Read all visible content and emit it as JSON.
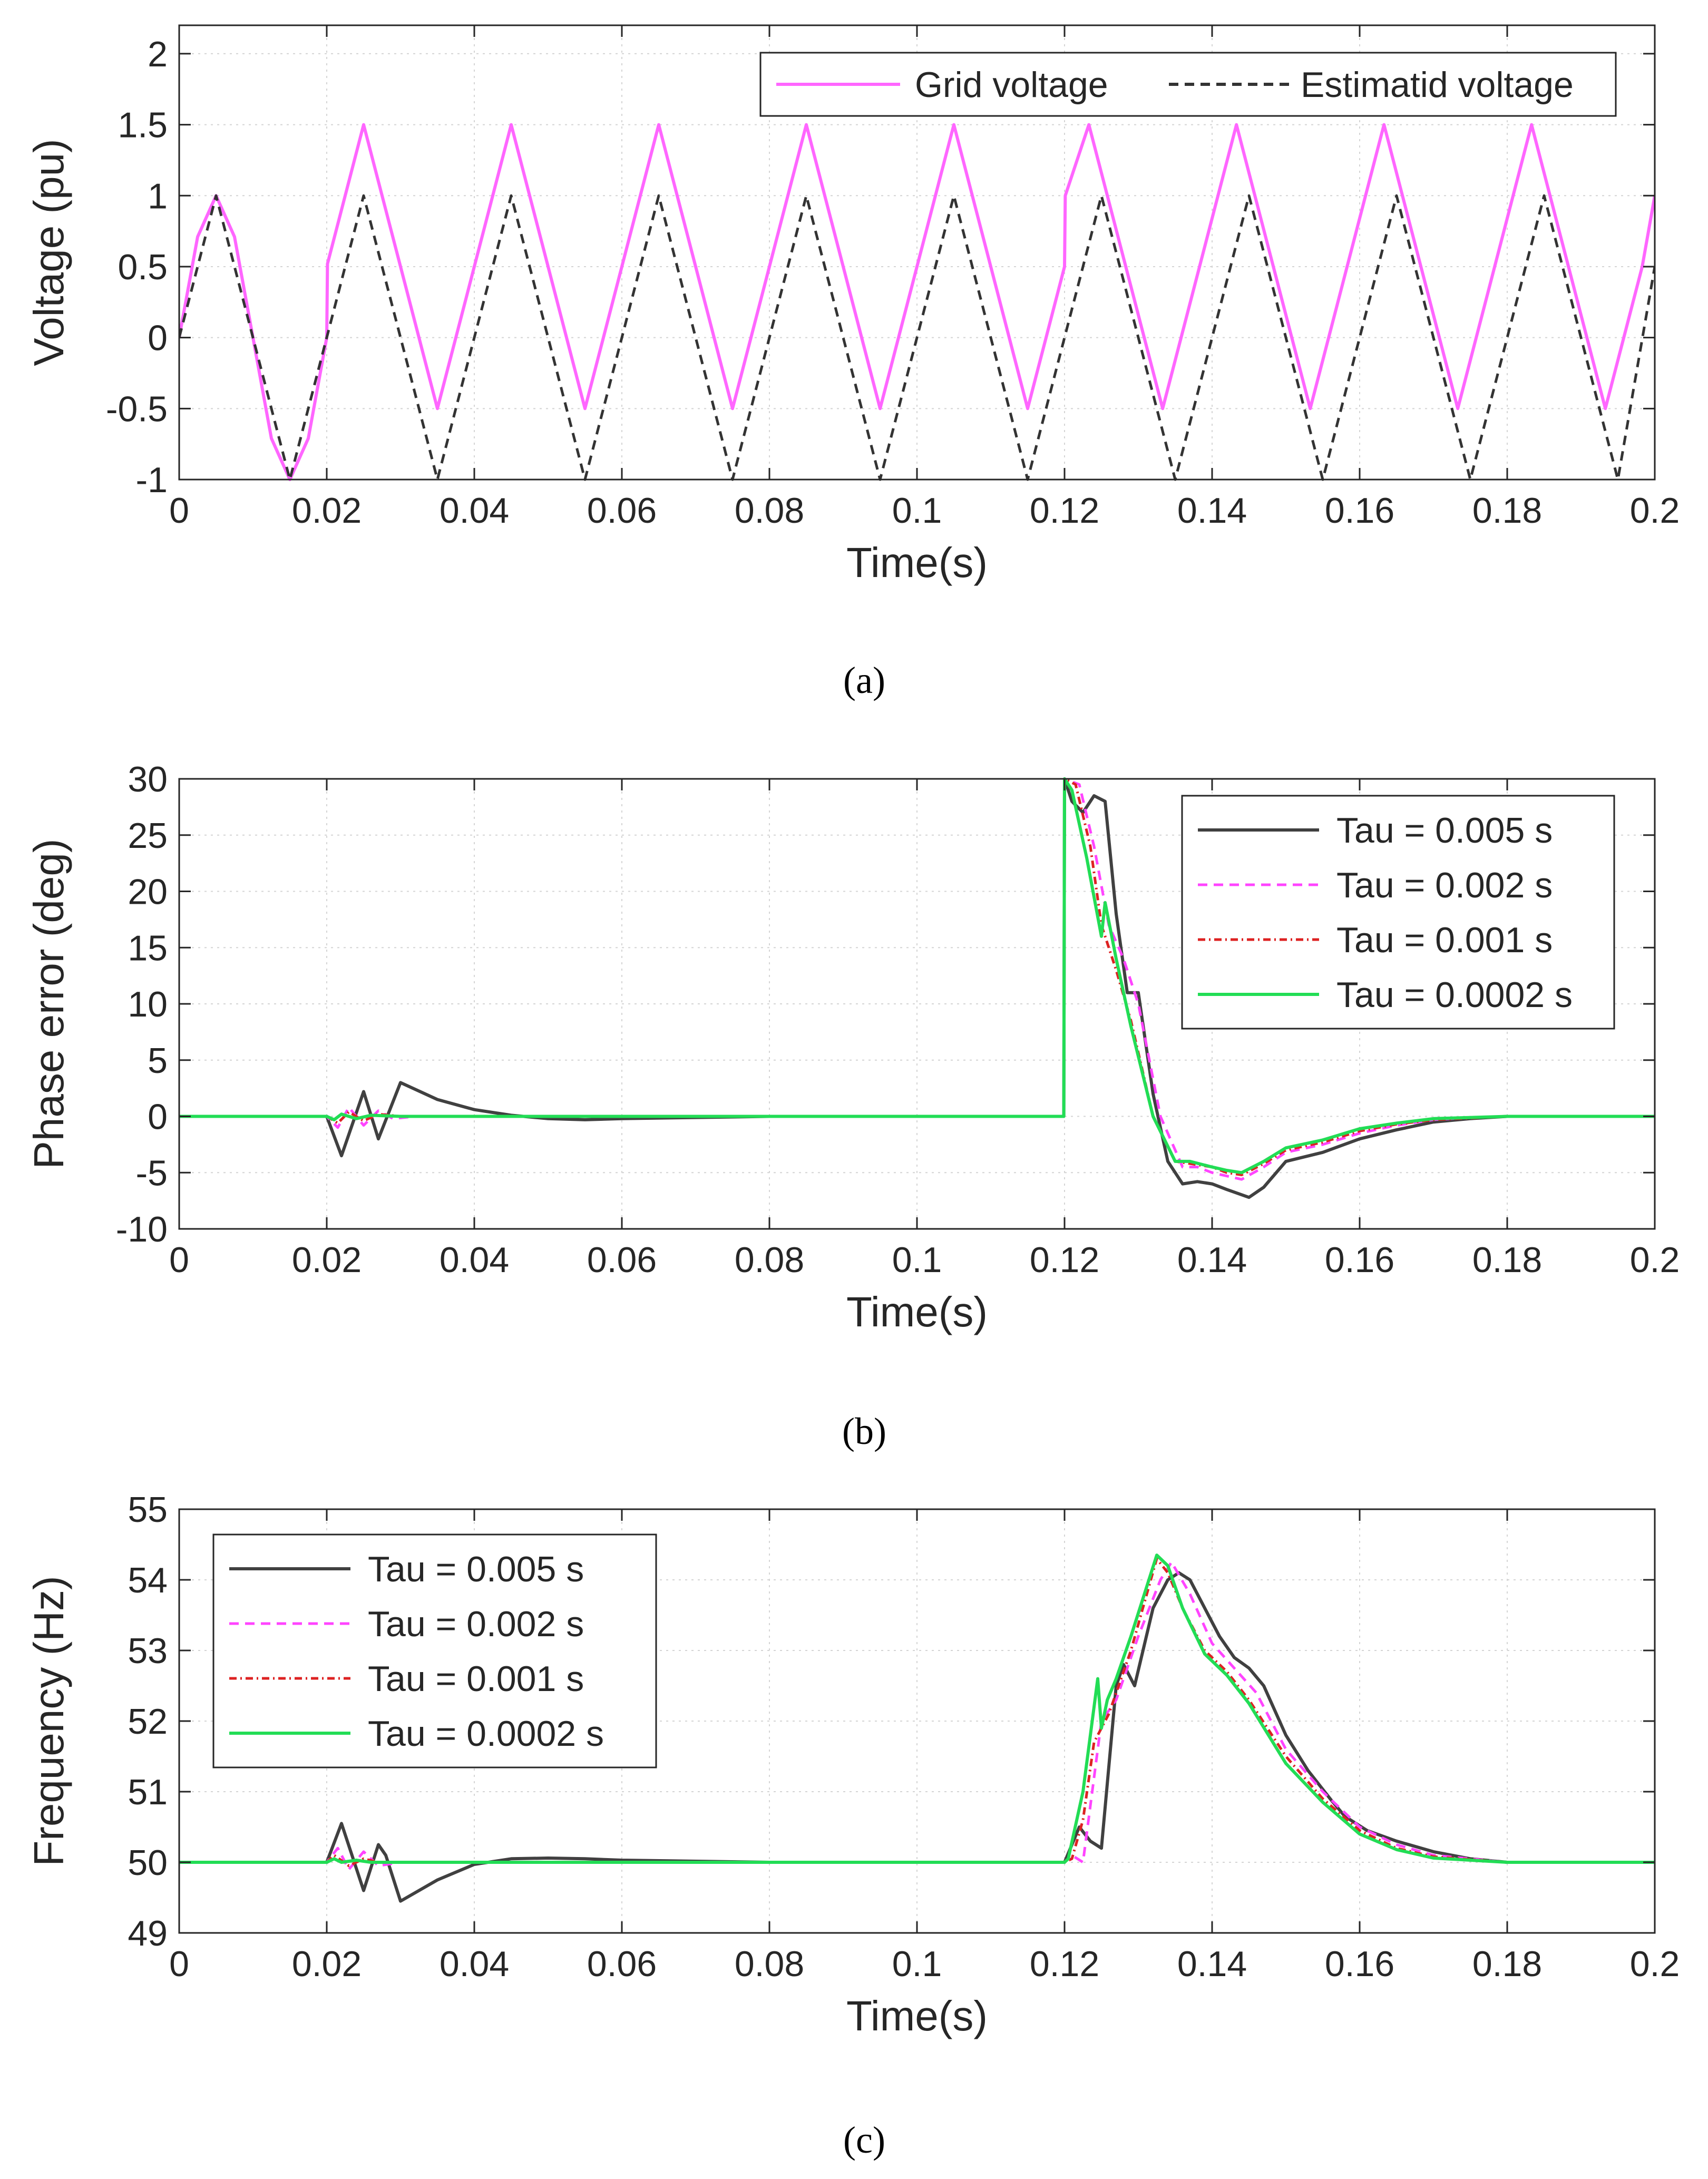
{
  "figure": {
    "panel_labels": [
      "(a)",
      "(b)",
      "(c)"
    ]
  },
  "chart_data": [
    {
      "id": "a",
      "type": "line",
      "title": "",
      "xlabel": "Time(s)",
      "ylabel": "Voltage (pu)",
      "xlim": [
        0,
        0.2
      ],
      "ylim": [
        -1,
        2.2
      ],
      "xticks": [
        0,
        0.02,
        0.04,
        0.06,
        0.08,
        0.1,
        0.12,
        0.14,
        0.16,
        0.18,
        0.2
      ],
      "xtick_labels": [
        "0",
        "0.02",
        "0.04",
        "0.06",
        "0.08",
        "0.1",
        "0.12",
        "0.14",
        "0.16",
        "0.18",
        "0.2"
      ],
      "yticks": [
        -1,
        -0.5,
        0,
        0.5,
        1,
        1.5,
        2
      ],
      "ytick_labels": [
        "-1",
        "-0.5",
        "0",
        "0.5",
        "1",
        "1.5",
        "2"
      ],
      "grid": true,
      "legend": {
        "placement": "top-right",
        "orientation": "horizontal"
      },
      "series": [
        {
          "name": "Grid voltage",
          "color": "#ff66ff",
          "dash": "solid",
          "description": "Sine at 50 Hz, amplitude 1; from t=0.02 s offset by +0.5 pu (swing -0.5 to 1.5); phase jump of 30 deg at t=0.12 s",
          "x": [
            0,
            0.0025,
            0.005,
            0.0075,
            0.01,
            0.0125,
            0.015,
            0.0175,
            0.02,
            0.0201,
            0.025,
            0.03,
            0.035,
            0.04,
            0.045,
            0.05,
            0.055,
            0.06,
            0.065,
            0.07,
            0.075,
            0.08,
            0.085,
            0.09,
            0.095,
            0.1,
            0.105,
            0.11,
            0.115,
            0.12,
            0.1201,
            0.1233,
            0.1283,
            0.1333,
            0.1383,
            0.1433,
            0.1483,
            0.1533,
            0.1583,
            0.1633,
            0.1683,
            0.1733,
            0.1783,
            0.1833,
            0.1883,
            0.1933,
            0.1983,
            0.2
          ],
          "values": [
            0,
            0.71,
            1,
            0.71,
            0,
            -0.71,
            -1,
            -0.71,
            0,
            0.52,
            1.5,
            0.5,
            -0.5,
            0.5,
            1.5,
            0.5,
            -0.5,
            0.5,
            1.5,
            0.5,
            -0.5,
            0.5,
            1.5,
            0.5,
            -0.5,
            0.5,
            1.5,
            0.5,
            -0.5,
            0.5,
            1.0,
            1.5,
            0.5,
            -0.5,
            0.5,
            1.5,
            0.5,
            -0.5,
            0.5,
            1.5,
            0.5,
            -0.5,
            0.5,
            1.5,
            0.5,
            -0.5,
            0.5,
            1.0
          ]
        },
        {
          "name": "Estimatid voltage",
          "color": "#333333",
          "dash": "dashed",
          "description": "Unit-amplitude sine at 50 Hz (swing -1 to 1)",
          "x": [
            0,
            0.005,
            0.01,
            0.015,
            0.02,
            0.025,
            0.03,
            0.035,
            0.04,
            0.045,
            0.05,
            0.055,
            0.06,
            0.065,
            0.07,
            0.075,
            0.08,
            0.085,
            0.09,
            0.095,
            0.1,
            0.105,
            0.11,
            0.115,
            0.12,
            0.125,
            0.13,
            0.135,
            0.14,
            0.145,
            0.15,
            0.155,
            0.16,
            0.165,
            0.17,
            0.175,
            0.18,
            0.185,
            0.19,
            0.195,
            0.2
          ],
          "values": [
            0,
            1,
            0,
            -1,
            0,
            1,
            0,
            -1,
            0,
            1,
            0,
            -1,
            0,
            1,
            0,
            -1,
            0,
            1,
            0,
            -1,
            0,
            1,
            0,
            -1,
            0,
            1,
            0,
            -1,
            0,
            1,
            0,
            -1,
            0,
            1,
            0,
            -1,
            0,
            1,
            0,
            -1,
            0.5
          ]
        }
      ]
    },
    {
      "id": "b",
      "type": "line",
      "title": "",
      "xlabel": "Time(s)",
      "ylabel": "Phase error (deg)",
      "xlim": [
        0,
        0.2
      ],
      "ylim": [
        -10,
        30
      ],
      "xticks": [
        0,
        0.02,
        0.04,
        0.06,
        0.08,
        0.1,
        0.12,
        0.14,
        0.16,
        0.18,
        0.2
      ],
      "xtick_labels": [
        "0",
        "0.02",
        "0.04",
        "0.06",
        "0.08",
        "0.1",
        "0.12",
        "0.14",
        "0.16",
        "0.18",
        "0.2"
      ],
      "yticks": [
        -10,
        -5,
        0,
        5,
        10,
        15,
        20,
        25,
        30
      ],
      "ytick_labels": [
        "-10",
        "-5",
        "0",
        "5",
        "10",
        "15",
        "20",
        "25",
        "30"
      ],
      "grid": true,
      "legend": {
        "placement": "top-right",
        "orientation": "vertical"
      },
      "series": [
        {
          "name": "Tau = 0.005 s",
          "color": "#404040",
          "dash": "solid",
          "x": [
            0,
            0.02,
            0.022,
            0.025,
            0.027,
            0.03,
            0.035,
            0.04,
            0.045,
            0.05,
            0.055,
            0.06,
            0.08,
            0.1,
            0.11,
            0.1199,
            0.12,
            0.121,
            0.1225,
            0.124,
            0.1255,
            0.127,
            0.1285,
            0.13,
            0.132,
            0.134,
            0.136,
            0.138,
            0.14,
            0.142,
            0.145,
            0.147,
            0.15,
            0.155,
            0.16,
            0.165,
            0.17,
            0.175,
            0.18,
            0.19,
            0.2
          ],
          "values": [
            0,
            0,
            -3.5,
            2.2,
            -2,
            3,
            1.5,
            0.6,
            0.1,
            -0.2,
            -0.3,
            -0.2,
            0,
            0,
            0,
            0,
            30,
            28,
            27,
            28.5,
            28,
            18,
            11,
            11,
            2,
            -4,
            -6,
            -5.8,
            -6,
            -6.5,
            -7.2,
            -6.3,
            -4,
            -3.2,
            -2,
            -1.2,
            -0.5,
            -0.2,
            0,
            0,
            0
          ]
        },
        {
          "name": "Tau = 0.002 s",
          "color": "#ff44ff",
          "dash": "dashed",
          "x": [
            0,
            0.02,
            0.0215,
            0.023,
            0.025,
            0.027,
            0.029,
            0.032,
            0.04,
            0.06,
            0.1,
            0.1199,
            0.12,
            0.122,
            0.124,
            0.126,
            0.128,
            0.13,
            0.133,
            0.136,
            0.138,
            0.14,
            0.142,
            0.144,
            0.147,
            0.15,
            0.155,
            0.16,
            0.165,
            0.17,
            0.175,
            0.18,
            0.19,
            0.2
          ],
          "values": [
            0,
            0,
            -1,
            0.8,
            -0.8,
            0.5,
            -0.2,
            0,
            0,
            0,
            0,
            0,
            30,
            29.5,
            24,
            17,
            14,
            10,
            0,
            -4.5,
            -4.5,
            -5,
            -5.3,
            -5.6,
            -4.5,
            -3.2,
            -2.5,
            -1.5,
            -0.8,
            -0.3,
            -0.1,
            0,
            0,
            0
          ]
        },
        {
          "name": "Tau = 0.001 s",
          "color": "#dd2222",
          "dash": "dashdot",
          "x": [
            0,
            0.02,
            0.0215,
            0.023,
            0.025,
            0.027,
            0.03,
            0.04,
            0.1,
            0.1199,
            0.12,
            0.1215,
            0.1235,
            0.125,
            0.127,
            0.129,
            0.132,
            0.135,
            0.137,
            0.14,
            0.142,
            0.144,
            0.147,
            0.15,
            0.155,
            0.16,
            0.165,
            0.17,
            0.18,
            0.19,
            0.2
          ],
          "values": [
            0,
            0,
            -0.6,
            0.4,
            -0.4,
            0.2,
            0,
            0,
            0,
            0,
            30,
            29.5,
            24,
            17,
            13,
            8.5,
            0,
            -4,
            -4.2,
            -4.5,
            -5,
            -5.2,
            -4.2,
            -3,
            -2.3,
            -1.3,
            -0.7,
            -0.3,
            0,
            0,
            0
          ]
        },
        {
          "name": "Tau = 0.0002 s",
          "color": "#22dd55",
          "dash": "solid",
          "x": [
            0,
            0.02,
            0.021,
            0.022,
            0.024,
            0.026,
            0.03,
            0.04,
            0.1,
            0.1199,
            0.12,
            0.121,
            0.123,
            0.125,
            0.1255,
            0.127,
            0.129,
            0.132,
            0.135,
            0.137,
            0.14,
            0.142,
            0.144,
            0.147,
            0.15,
            0.155,
            0.16,
            0.165,
            0.17,
            0.18,
            0.19,
            0.2
          ],
          "values": [
            0,
            0,
            -0.3,
            0.2,
            -0.2,
            0.1,
            0,
            0,
            0,
            0,
            30,
            29,
            23,
            16,
            19,
            14,
            8,
            0,
            -4,
            -4,
            -4.5,
            -4.8,
            -5,
            -4,
            -2.8,
            -2.1,
            -1.1,
            -0.6,
            -0.2,
            0,
            0,
            0
          ]
        }
      ]
    },
    {
      "id": "c",
      "type": "line",
      "title": "",
      "xlabel": "Time(s)",
      "ylabel": "Frequency (Hz)",
      "xlim": [
        0,
        0.2
      ],
      "ylim": [
        49,
        55
      ],
      "xticks": [
        0,
        0.02,
        0.04,
        0.06,
        0.08,
        0.1,
        0.12,
        0.14,
        0.16,
        0.18,
        0.2
      ],
      "xtick_labels": [
        "0",
        "0.02",
        "0.04",
        "0.06",
        "0.08",
        "0.1",
        "0.12",
        "0.14",
        "0.16",
        "0.18",
        "0.2"
      ],
      "yticks": [
        49,
        50,
        51,
        52,
        53,
        54,
        55
      ],
      "ytick_labels": [
        "49",
        "50",
        "51",
        "52",
        "53",
        "54",
        "55"
      ],
      "grid": true,
      "legend": {
        "placement": "top-left",
        "orientation": "vertical"
      },
      "series": [
        {
          "name": "Tau = 0.005 s",
          "color": "#404040",
          "dash": "solid",
          "x": [
            0,
            0.02,
            0.022,
            0.025,
            0.027,
            0.028,
            0.03,
            0.035,
            0.04,
            0.045,
            0.05,
            0.055,
            0.06,
            0.08,
            0.1,
            0.12,
            0.122,
            0.1235,
            0.125,
            0.127,
            0.128,
            0.1295,
            0.132,
            0.134,
            0.1355,
            0.137,
            0.139,
            0.141,
            0.143,
            0.145,
            0.147,
            0.15,
            0.153,
            0.156,
            0.158,
            0.161,
            0.165,
            0.17,
            0.175,
            0.18,
            0.19,
            0.2
          ],
          "values": [
            50,
            50,
            50.55,
            49.6,
            50.25,
            50.1,
            49.45,
            49.75,
            49.97,
            50.05,
            50.06,
            50.05,
            50.03,
            50,
            50,
            50,
            50.5,
            50.3,
            50.2,
            52.5,
            52.8,
            52.5,
            53.6,
            54,
            54.1,
            54,
            53.6,
            53.2,
            52.9,
            52.75,
            52.5,
            51.8,
            51.3,
            50.9,
            50.65,
            50.45,
            50.3,
            50.15,
            50.05,
            50,
            50,
            50
          ]
        },
        {
          "name": "Tau = 0.002 s",
          "color": "#ff44ff",
          "dash": "dashed",
          "x": [
            0,
            0.02,
            0.0215,
            0.023,
            0.025,
            0.027,
            0.03,
            0.04,
            0.1,
            0.12,
            0.121,
            0.1225,
            0.124,
            0.125,
            0.127,
            0.13,
            0.133,
            0.1345,
            0.137,
            0.14,
            0.143,
            0.146,
            0.15,
            0.155,
            0.16,
            0.165,
            0.17,
            0.18,
            0.19,
            0.2
          ],
          "values": [
            50,
            50,
            50.2,
            49.9,
            50.15,
            49.95,
            50,
            50,
            50,
            50,
            50.1,
            50,
            51.2,
            52,
            52.3,
            53.2,
            54,
            54.25,
            53.8,
            53.1,
            52.75,
            52.4,
            51.6,
            51,
            50.5,
            50.25,
            50.1,
            50,
            50,
            50
          ]
        },
        {
          "name": "Tau = 0.001 s",
          "color": "#dd2222",
          "dash": "dashdot",
          "x": [
            0,
            0.02,
            0.021,
            0.023,
            0.025,
            0.027,
            0.03,
            0.1,
            0.12,
            0.121,
            0.1225,
            0.124,
            0.126,
            0.129,
            0.1325,
            0.134,
            0.136,
            0.139,
            0.142,
            0.145,
            0.15,
            0.155,
            0.16,
            0.165,
            0.17,
            0.18,
            0.19,
            0.2
          ],
          "values": [
            50,
            50,
            50.1,
            49.95,
            50.05,
            50,
            50,
            50,
            50,
            50.05,
            50.6,
            51.7,
            52.1,
            53,
            54.3,
            54.1,
            53.6,
            53,
            52.7,
            52.3,
            51.5,
            50.9,
            50.45,
            50.2,
            50.08,
            50,
            50,
            50
          ]
        },
        {
          "name": "Tau = 0.0002 s",
          "color": "#22dd55",
          "dash": "solid",
          "x": [
            0,
            0.02,
            0.021,
            0.022,
            0.024,
            0.026,
            0.03,
            0.1,
            0.12,
            0.1205,
            0.1225,
            0.1245,
            0.125,
            0.1258,
            0.127,
            0.129,
            0.1325,
            0.134,
            0.136,
            0.139,
            0.142,
            0.145,
            0.15,
            0.155,
            0.16,
            0.165,
            0.17,
            0.18,
            0.19,
            0.2
          ],
          "values": [
            50,
            50,
            50.05,
            50,
            50.03,
            50,
            50,
            50,
            50,
            50.05,
            51,
            52.6,
            51.9,
            52.3,
            52.6,
            53.2,
            54.35,
            54.2,
            53.6,
            52.95,
            52.65,
            52.25,
            51.4,
            50.85,
            50.4,
            50.18,
            50.06,
            50,
            50,
            50
          ]
        }
      ]
    }
  ]
}
